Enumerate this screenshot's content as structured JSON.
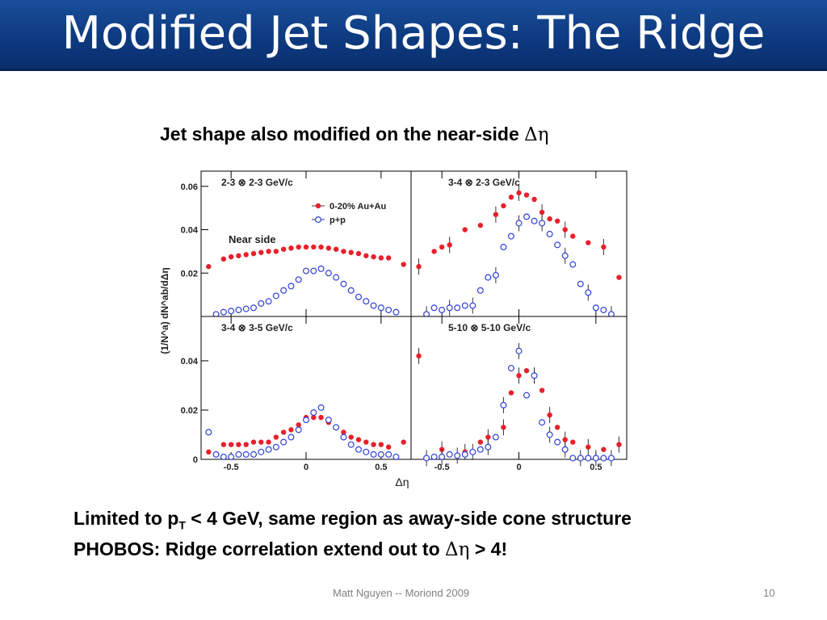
{
  "slide": {
    "title": "Modified Jet Shapes: The Ridge",
    "subtitle_text": "Jet shape also modified on the near-side ",
    "subtitle_symbol": "Δη",
    "bullet1_pre": "Limited to p",
    "bullet1_sub": "T",
    "bullet1_post": "  < 4 GeV, same region as away-side cone structure",
    "bullet2_pre": "PHOBOS:  Ridge correlation extend out to ",
    "bullet2_symbol": "Δη",
    "bullet2_post": " > 4!",
    "footer": "Matt Nguyen -- Moriond 2009",
    "page_number": "10"
  },
  "colors": {
    "title_bar": "#0d3a80",
    "auau": "#e8202a",
    "pp": "#2f3fd6"
  },
  "chart_data": {
    "type": "scatter",
    "ylabel": "(1/N^a)  dN^ab/dΔη",
    "xlabel": "Δη",
    "xlim": [
      -0.7,
      0.7
    ],
    "xticks": [
      -0.5,
      0,
      0.5
    ],
    "xtick_labels": [
      "-0.5",
      "0",
      "0.5"
    ],
    "legend": [
      {
        "name": "0-20% Au+Au",
        "marker": "filled-circle",
        "color": "#e8202a"
      },
      {
        "name": "p+p",
        "marker": "open-circle",
        "color": "#2f3fd6"
      }
    ],
    "panels": [
      {
        "label": "2-3 ⊗ 2-3 GeV/c",
        "annotation": "Near side",
        "ylim": [
          0.0,
          0.067
        ],
        "yticks": [
          0.02,
          0.04,
          0.06
        ],
        "ytick_labels": [
          "0.02",
          "0.04",
          "0.06"
        ],
        "series": [
          {
            "name": "0-20% Au+Au",
            "x": [
              -0.65,
              -0.55,
              -0.5,
              -0.45,
              -0.4,
              -0.35,
              -0.3,
              -0.25,
              -0.2,
              -0.15,
              -0.1,
              -0.05,
              0,
              0.05,
              0.1,
              0.15,
              0.2,
              0.25,
              0.3,
              0.35,
              0.4,
              0.45,
              0.5,
              0.55,
              0.65
            ],
            "y": [
              0.023,
              0.0265,
              0.0275,
              0.028,
              0.0285,
              0.029,
              0.0295,
              0.03,
              0.03,
              0.031,
              0.0315,
              0.032,
              0.032,
              0.032,
              0.032,
              0.0315,
              0.031,
              0.03,
              0.0295,
              0.029,
              0.028,
              0.0275,
              0.027,
              0.027,
              0.024
            ]
          },
          {
            "name": "p+p",
            "x": [
              -0.6,
              -0.55,
              -0.5,
              -0.45,
              -0.4,
              -0.35,
              -0.3,
              -0.25,
              -0.2,
              -0.15,
              -0.1,
              -0.05,
              0,
              0.05,
              0.1,
              0.15,
              0.2,
              0.25,
              0.3,
              0.35,
              0.4,
              0.45,
              0.5,
              0.55,
              0.6
            ],
            "y": [
              0.001,
              0.002,
              0.0025,
              0.003,
              0.0035,
              0.004,
              0.006,
              0.007,
              0.0095,
              0.012,
              0.014,
              0.017,
              0.021,
              0.021,
              0.022,
              0.02,
              0.018,
              0.015,
              0.012,
              0.009,
              0.007,
              0.005,
              0.004,
              0.003,
              0.002
            ]
          }
        ]
      },
      {
        "label": "3-4 ⊗ 2-3 GeV/c",
        "ylim": [
          0.0,
          0.067
        ],
        "yticks": [],
        "ytick_labels": [],
        "series": [
          {
            "name": "0-20% Au+Au",
            "x": [
              -0.65,
              -0.55,
              -0.5,
              -0.45,
              -0.35,
              -0.25,
              -0.15,
              -0.1,
              -0.05,
              0,
              0.05,
              0.1,
              0.15,
              0.2,
              0.25,
              0.3,
              0.35,
              0.45,
              0.55,
              0.65
            ],
            "y": [
              0.023,
              0.03,
              0.032,
              0.033,
              0.04,
              0.042,
              0.047,
              0.051,
              0.055,
              0.057,
              0.056,
              0.054,
              0.048,
              0.045,
              0.044,
              0.04,
              0.037,
              0.034,
              0.032,
              0.018
            ]
          },
          {
            "name": "p+p",
            "x": [
              -0.6,
              -0.55,
              -0.5,
              -0.45,
              -0.4,
              -0.35,
              -0.3,
              -0.25,
              -0.2,
              -0.15,
              -0.1,
              -0.05,
              0,
              0.05,
              0.1,
              0.15,
              0.2,
              0.25,
              0.3,
              0.35,
              0.4,
              0.45,
              0.5,
              0.55,
              0.6
            ],
            "y": [
              0.001,
              0.004,
              0.003,
              0.004,
              0.004,
              0.005,
              0.005,
              0.012,
              0.018,
              0.019,
              0.032,
              0.037,
              0.043,
              0.046,
              0.044,
              0.043,
              0.038,
              0.033,
              0.028,
              0.024,
              0.015,
              0.011,
              0.004,
              0.003,
              0.001
            ]
          }
        ]
      },
      {
        "label": "3-4 ⊗ 3-5 GeV/c",
        "ylim": [
          0.0,
          0.058
        ],
        "yticks": [
          0,
          0.02,
          0.04
        ],
        "ytick_labels": [
          "0",
          "0.02",
          "0.04"
        ],
        "series": [
          {
            "name": "0-20% Au+Au",
            "x": [
              -0.65,
              -0.55,
              -0.5,
              -0.45,
              -0.4,
              -0.35,
              -0.3,
              -0.25,
              -0.2,
              -0.15,
              -0.1,
              -0.05,
              0,
              0.05,
              0.1,
              0.15,
              0.2,
              0.25,
              0.3,
              0.35,
              0.4,
              0.45,
              0.5,
              0.55,
              0.65
            ],
            "y": [
              0.003,
              0.006,
              0.006,
              0.006,
              0.006,
              0.007,
              0.007,
              0.007,
              0.009,
              0.011,
              0.012,
              0.014,
              0.017,
              0.017,
              0.017,
              0.015,
              0.013,
              0.011,
              0.009,
              0.008,
              0.007,
              0.006,
              0.006,
              0.005,
              0.007
            ]
          },
          {
            "name": "p+p",
            "x": [
              -0.65,
              -0.6,
              -0.55,
              -0.5,
              -0.45,
              -0.4,
              -0.35,
              -0.3,
              -0.25,
              -0.2,
              -0.15,
              -0.1,
              -0.05,
              0,
              0.05,
              0.1,
              0.15,
              0.2,
              0.25,
              0.3,
              0.35,
              0.4,
              0.45,
              0.5,
              0.55,
              0.6
            ],
            "y": [
              0.011,
              0.002,
              0.001,
              0.001,
              0.002,
              0.002,
              0.002,
              0.003,
              0.004,
              0.005,
              0.007,
              0.009,
              0.012,
              0.016,
              0.019,
              0.021,
              0.016,
              0.013,
              0.009,
              0.006,
              0.004,
              0.003,
              0.002,
              0.002,
              0.002,
              0.001
            ]
          }
        ]
      },
      {
        "label": "5-10 ⊗ 5-10 GeV/c",
        "ylim": [
          0.0,
          0.058
        ],
        "yticks": [],
        "ytick_labels": [],
        "series": [
          {
            "name": "0-20% Au+Au",
            "x": [
              -0.65,
              -0.55,
              -0.5,
              -0.45,
              -0.35,
              -0.25,
              -0.2,
              -0.15,
              -0.1,
              -0.05,
              0,
              0.05,
              0.1,
              0.15,
              0.2,
              0.25,
              0.3,
              0.35,
              0.45,
              0.55,
              0.65
            ],
            "y": [
              0.042,
              0.001,
              0.004,
              0.002,
              0.003,
              0.007,
              0.009,
              0.009,
              0.013,
              0.027,
              0.034,
              0.036,
              0.034,
              0.028,
              0.018,
              0.013,
              0.008,
              0.007,
              0.005,
              0.004,
              0.006
            ]
          },
          {
            "name": "p+p",
            "x": [
              -0.6,
              -0.55,
              -0.5,
              -0.45,
              -0.4,
              -0.35,
              -0.3,
              -0.25,
              -0.2,
              -0.15,
              -0.1,
              -0.05,
              0,
              0.05,
              0.1,
              0.15,
              0.2,
              0.25,
              0.3,
              0.35,
              0.4,
              0.45,
              0.5,
              0.55,
              0.6
            ],
            "y": [
              0.0005,
              0.001,
              0.001,
              0.002,
              0.0015,
              0.002,
              0.003,
              0.004,
              0.005,
              0.009,
              0.022,
              0.037,
              0.044,
              0.026,
              0.034,
              0.015,
              0.01,
              0.007,
              0.004,
              0.0005,
              0.0005,
              0.0005,
              0.0005,
              0.0005,
              0.0005
            ]
          }
        ]
      }
    ]
  }
}
